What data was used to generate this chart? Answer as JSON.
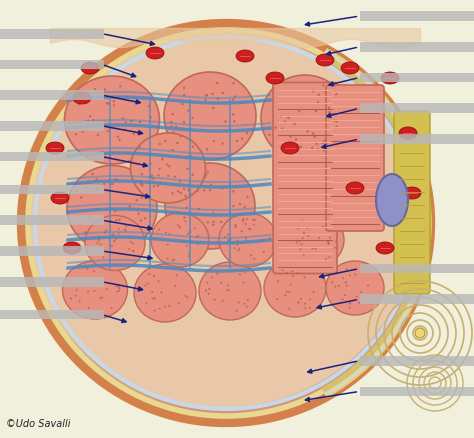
{
  "bg_color": "#f0f0dc",
  "watermark": "©Udo Savalli",
  "watermark_fontsize": 7,
  "watermark_color": "#222222",
  "label_bars_left": [
    {
      "xf": 0.0,
      "yf": 0.91,
      "wf": 0.22,
      "hf": 0.022
    },
    {
      "xf": 0.0,
      "yf": 0.84,
      "wf": 0.22,
      "hf": 0.022
    },
    {
      "xf": 0.0,
      "yf": 0.77,
      "wf": 0.22,
      "hf": 0.022
    },
    {
      "xf": 0.0,
      "yf": 0.7,
      "wf": 0.22,
      "hf": 0.022
    },
    {
      "xf": 0.0,
      "yf": 0.63,
      "wf": 0.22,
      "hf": 0.022
    },
    {
      "xf": 0.0,
      "yf": 0.555,
      "wf": 0.22,
      "hf": 0.022
    },
    {
      "xf": 0.0,
      "yf": 0.485,
      "wf": 0.22,
      "hf": 0.022
    },
    {
      "xf": 0.0,
      "yf": 0.415,
      "wf": 0.22,
      "hf": 0.022
    },
    {
      "xf": 0.0,
      "yf": 0.345,
      "wf": 0.22,
      "hf": 0.022
    },
    {
      "xf": 0.0,
      "yf": 0.27,
      "wf": 0.22,
      "hf": 0.022
    }
  ],
  "label_bars_right": [
    {
      "xf": 0.76,
      "yf": 0.95,
      "wf": 0.24,
      "hf": 0.022
    },
    {
      "xf": 0.76,
      "yf": 0.88,
      "wf": 0.24,
      "hf": 0.022
    },
    {
      "xf": 0.76,
      "yf": 0.81,
      "wf": 0.24,
      "hf": 0.022
    },
    {
      "xf": 0.76,
      "yf": 0.74,
      "wf": 0.24,
      "hf": 0.022
    },
    {
      "xf": 0.76,
      "yf": 0.67,
      "wf": 0.24,
      "hf": 0.022
    },
    {
      "xf": 0.76,
      "yf": 0.375,
      "wf": 0.24,
      "hf": 0.022
    },
    {
      "xf": 0.76,
      "yf": 0.305,
      "wf": 0.24,
      "hf": 0.022
    },
    {
      "xf": 0.76,
      "yf": 0.165,
      "wf": 0.24,
      "hf": 0.022
    },
    {
      "xf": 0.76,
      "yf": 0.095,
      "wf": 0.24,
      "hf": 0.022
    }
  ],
  "label_bar_color": "#b8b8b8",
  "arrows": [
    {
      "x1f": 0.215,
      "y1f": 0.921,
      "x2f": 0.335,
      "y2f": 0.895
    },
    {
      "x1f": 0.215,
      "y1f": 0.851,
      "x2f": 0.295,
      "y2f": 0.82
    },
    {
      "x1f": 0.215,
      "y1f": 0.781,
      "x2f": 0.305,
      "y2f": 0.762
    },
    {
      "x1f": 0.215,
      "y1f": 0.711,
      "x2f": 0.31,
      "y2f": 0.692
    },
    {
      "x1f": 0.215,
      "y1f": 0.641,
      "x2f": 0.32,
      "y2f": 0.618
    },
    {
      "x1f": 0.215,
      "y1f": 0.566,
      "x2f": 0.325,
      "y2f": 0.548
    },
    {
      "x1f": 0.215,
      "y1f": 0.496,
      "x2f": 0.33,
      "y2f": 0.475
    },
    {
      "x1f": 0.215,
      "y1f": 0.426,
      "x2f": 0.33,
      "y2f": 0.408
    },
    {
      "x1f": 0.215,
      "y1f": 0.356,
      "x2f": 0.31,
      "y2f": 0.336
    },
    {
      "x1f": 0.215,
      "y1f": 0.281,
      "x2f": 0.275,
      "y2f": 0.262
    },
    {
      "x1f": 0.758,
      "y1f": 0.961,
      "x2f": 0.635,
      "y2f": 0.94
    },
    {
      "x1f": 0.758,
      "y1f": 0.891,
      "x2f": 0.68,
      "y2f": 0.872
    },
    {
      "x1f": 0.758,
      "y1f": 0.821,
      "x2f": 0.685,
      "y2f": 0.802
    },
    {
      "x1f": 0.758,
      "y1f": 0.751,
      "x2f": 0.68,
      "y2f": 0.73
    },
    {
      "x1f": 0.758,
      "y1f": 0.681,
      "x2f": 0.67,
      "y2f": 0.66
    },
    {
      "x1f": 0.758,
      "y1f": 0.386,
      "x2f": 0.665,
      "y2f": 0.365
    },
    {
      "x1f": 0.758,
      "y1f": 0.316,
      "x2f": 0.66,
      "y2f": 0.295
    },
    {
      "x1f": 0.758,
      "y1f": 0.176,
      "x2f": 0.64,
      "y2f": 0.148
    },
    {
      "x1f": 0.758,
      "y1f": 0.106,
      "x2f": 0.635,
      "y2f": 0.085
    }
  ],
  "arrow_color": "#1a237e",
  "arrow_lw": 1.1
}
